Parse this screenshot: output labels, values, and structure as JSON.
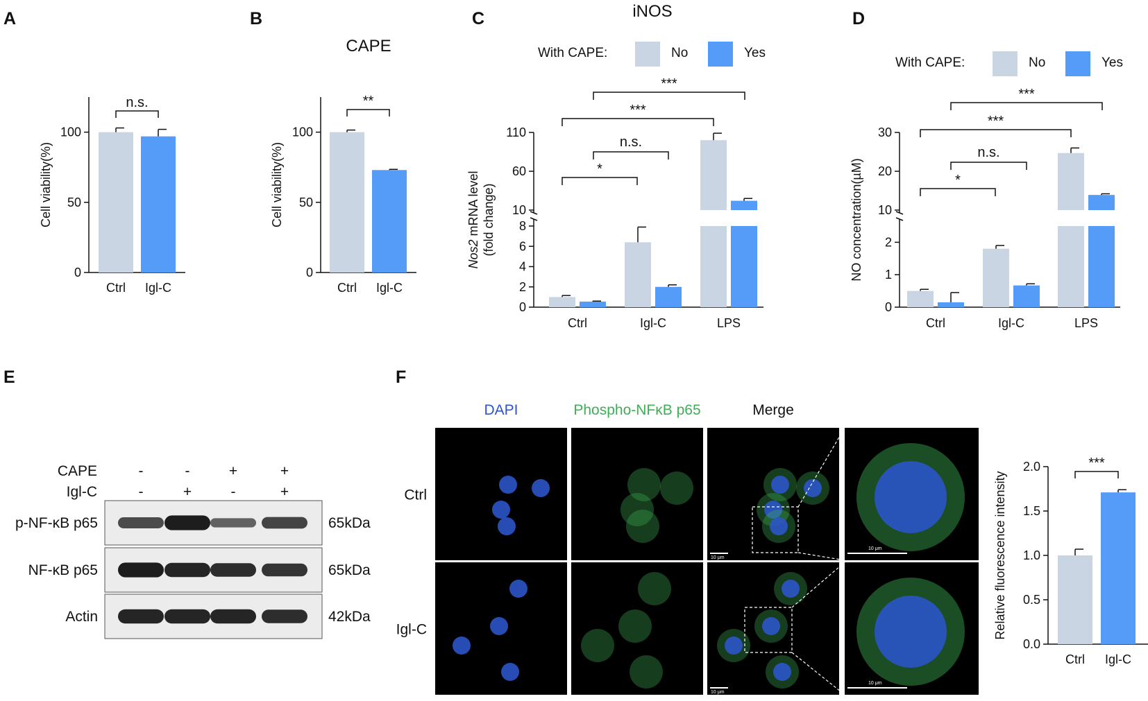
{
  "figure": {
    "panel_labels": [
      "A",
      "B",
      "C",
      "D",
      "E",
      "F"
    ]
  },
  "colors": {
    "no": "#c9d5e3",
    "yes": "#559cf8",
    "dapi": "#2b55c8",
    "phospho": "#3fae55",
    "merge": "#111111"
  },
  "chart_data": [
    {
      "id": "A",
      "type": "bar",
      "title": "",
      "ylabel": "Cell viability(%)",
      "ylim": [
        0,
        125
      ],
      "yticks": [
        "0",
        "50",
        "100"
      ],
      "categories": [
        "Ctrl",
        "Igl-C"
      ],
      "values": [
        100,
        97
      ],
      "errors": [
        3,
        5
      ],
      "colors": [
        "#c9d5e3",
        "#559cf8"
      ],
      "significance": [
        {
          "pair": [
            0,
            1
          ],
          "label": "n.s."
        }
      ]
    },
    {
      "id": "B",
      "type": "bar",
      "title": "CAPE",
      "ylabel": "Cell viability(%)",
      "ylim": [
        0,
        125
      ],
      "yticks": [
        "0",
        "50",
        "100"
      ],
      "categories": [
        "Ctrl",
        "Igl-C"
      ],
      "values": [
        100,
        73
      ],
      "errors": [
        1.5,
        0.5
      ],
      "colors": [
        "#c9d5e3",
        "#559cf8"
      ],
      "significance": [
        {
          "pair": [
            0,
            1
          ],
          "label": "**"
        }
      ]
    },
    {
      "id": "C",
      "type": "bar",
      "title": "iNOS",
      "ylabel_italic": "Nos2",
      "ylabel_rest": " mRNA level",
      "ylabel2": "(fold change)",
      "legend_title": "With CAPE:",
      "series": [
        {
          "name": "No",
          "values": [
            1.0,
            6.4,
            100
          ],
          "errors": [
            0.15,
            1.5,
            9
          ]
        },
        {
          "name": "Yes",
          "values": [
            0.55,
            2.0,
            22
          ],
          "errors": [
            0.05,
            0.2,
            3
          ]
        }
      ],
      "categories": [
        "Ctrl",
        "Igl-C",
        "LPS"
      ],
      "broken_axis": {
        "lower": [
          0,
          8
        ],
        "upper": [
          10,
          110
        ]
      },
      "yticks_lower": [
        "0",
        "2",
        "4",
        "6",
        "8"
      ],
      "yticks_upper": [
        "10",
        "60",
        "110"
      ],
      "significance": [
        {
          "label": "***"
        },
        {
          "label": "***"
        },
        {
          "label": "n.s."
        },
        {
          "label": "*"
        }
      ]
    },
    {
      "id": "D",
      "type": "bar",
      "title": "",
      "ylabel": "NO concentration(µM)",
      "legend_title": "With CAPE:",
      "series": [
        {
          "name": "No",
          "values": [
            0.5,
            1.8,
            24.7
          ],
          "errors": [
            0.05,
            0.1,
            1.3
          ]
        },
        {
          "name": "Yes",
          "values": [
            0.15,
            0.67,
            13.9
          ],
          "errors": [
            0.3,
            0.05,
            0.3
          ]
        }
      ],
      "categories": [
        "Ctrl",
        "Igl-C",
        "LPS"
      ],
      "broken_axis": {
        "lower": [
          0,
          2.5
        ],
        "upper": [
          10,
          30
        ]
      },
      "yticks_lower": [
        "0",
        "1",
        "2"
      ],
      "yticks_upper": [
        "10",
        "20",
        "30"
      ],
      "significance": [
        {
          "label": "***"
        },
        {
          "label": "***"
        },
        {
          "label": "n.s."
        },
        {
          "label": "*"
        }
      ]
    },
    {
      "id": "F-quant",
      "type": "bar",
      "title": "",
      "ylabel": "Relative fluorescence intensity",
      "ylim": [
        0,
        2.0
      ],
      "yticks": [
        "0.0",
        "0.5",
        "1.0",
        "1.5",
        "2.0"
      ],
      "categories": [
        "Ctrl",
        "Igl-C"
      ],
      "values": [
        1.0,
        1.71
      ],
      "errors": [
        0.07,
        0.03
      ],
      "colors": [
        "#c9d5e3",
        "#559cf8"
      ],
      "significance": [
        {
          "pair": [
            0,
            1
          ],
          "label": "***"
        }
      ]
    }
  ],
  "western_blot": {
    "conditions": [
      {
        "label": "CAPE",
        "values": [
          "-",
          "-",
          "+",
          "+"
        ]
      },
      {
        "label": "Igl-C",
        "values": [
          "-",
          "+",
          "-",
          "+"
        ]
      }
    ],
    "rows": [
      {
        "label": "p-NF-κB p65",
        "mw": "65kDa",
        "intensity": [
          0.55,
          0.85,
          0.4,
          0.6
        ]
      },
      {
        "label": "NF-κB p65",
        "mw": "65kDa",
        "intensity": [
          0.85,
          0.8,
          0.75,
          0.7
        ]
      },
      {
        "label": "Actin",
        "mw": "42kDa",
        "intensity": [
          0.8,
          0.8,
          0.8,
          0.75
        ]
      }
    ]
  },
  "if_panel": {
    "columns": [
      "DAPI",
      "Phospho-NFκB p65",
      "Merge"
    ],
    "rows": [
      "Ctrl",
      "Igl-C"
    ],
    "scalebar": "10 μm"
  }
}
